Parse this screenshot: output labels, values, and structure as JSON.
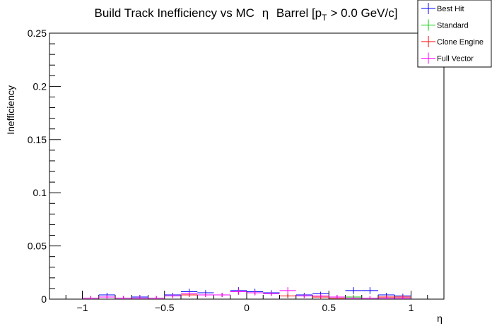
{
  "chart_data": {
    "type": "scatter",
    "title_main": "Build Track Inefficiency vs MC",
    "title_eta": "η",
    "title_rest": "Barrel [p",
    "title_sub": "T",
    "title_tail": "> 0.0 GeV/c]",
    "xlabel": "η",
    "ylabel": "Inefficiency",
    "xlim": [
      -1.2,
      1.2
    ],
    "ylim": [
      0,
      0.25
    ],
    "x_ticks": [
      -1,
      -0.5,
      0,
      0.5,
      1
    ],
    "x_tick_labels": [
      "−1",
      "−0.5",
      "0",
      "0.5",
      "1"
    ],
    "y_ticks": [
      0,
      0.05,
      0.1,
      0.15,
      0.2,
      0.25
    ],
    "y_tick_labels": [
      "0",
      "0.05",
      "0.1",
      "0.15",
      "0.2",
      "0.25"
    ],
    "bin_width": 0.1,
    "legend_position": "top-right",
    "colors": {
      "Best Hit": "#0000ff",
      "Standard": "#00cc00",
      "Clone Engine": "#ff0000",
      "Full Vector": "#ff00ff"
    },
    "series": [
      {
        "name": "Best Hit",
        "x": [
          -0.95,
          -0.85,
          -0.75,
          -0.65,
          -0.55,
          -0.45,
          -0.35,
          -0.25,
          -0.15,
          -0.05,
          0.05,
          0.15,
          0.25,
          0.35,
          0.45,
          0.55,
          0.65,
          0.75,
          0.85,
          0.95
        ],
        "y": [
          0.001,
          0.004,
          0.001,
          0.002,
          0.001,
          0.004,
          0.007,
          0.006,
          0.004,
          0.008,
          0.007,
          0.006,
          0.003,
          0.004,
          0.005,
          0.002,
          0.008,
          0.008,
          0.004,
          0.003
        ]
      },
      {
        "name": "Standard",
        "x": [
          -0.95,
          -0.85,
          -0.75,
          -0.65,
          -0.55,
          -0.45,
          -0.35,
          -0.25,
          -0.15,
          -0.05,
          0.05,
          0.15,
          0.25,
          0.35,
          0.45,
          0.55,
          0.65,
          0.75,
          0.85,
          0.95
        ],
        "y": [
          0.001,
          0.002,
          0.001,
          0.001,
          0.001,
          0.003,
          0.004,
          0.004,
          0.004,
          0.007,
          0.006,
          0.005,
          0.003,
          0.003,
          0.003,
          0.002,
          0.002,
          0.001,
          0.002,
          0.002
        ]
      },
      {
        "name": "Clone Engine",
        "x": [
          -0.95,
          -0.85,
          -0.75,
          -0.65,
          -0.55,
          -0.45,
          -0.35,
          -0.25,
          -0.15,
          -0.05,
          0.05,
          0.15,
          0.25,
          0.35,
          0.45,
          0.55,
          0.65,
          0.75,
          0.85,
          0.95
        ],
        "y": [
          0.001,
          0.002,
          0.001,
          0.001,
          0.001,
          0.003,
          0.004,
          0.004,
          0.004,
          0.007,
          0.006,
          0.005,
          0.003,
          0.003,
          0.002,
          0.001,
          0.001,
          0.001,
          0.002,
          0.002
        ]
      },
      {
        "name": "Full Vector",
        "x": [
          -0.95,
          -0.85,
          -0.75,
          -0.65,
          -0.55,
          -0.45,
          -0.35,
          -0.25,
          -0.15,
          -0.05,
          0.05,
          0.15,
          0.25,
          0.35,
          0.45,
          0.55,
          0.65,
          0.75,
          0.85,
          0.95
        ],
        "y": [
          0.001,
          0.002,
          0.001,
          0.001,
          0.001,
          0.003,
          0.005,
          0.004,
          0.004,
          0.007,
          0.006,
          0.005,
          0.008,
          0.003,
          0.003,
          0.002,
          0.001,
          0.001,
          0.001,
          0.001
        ]
      }
    ]
  }
}
